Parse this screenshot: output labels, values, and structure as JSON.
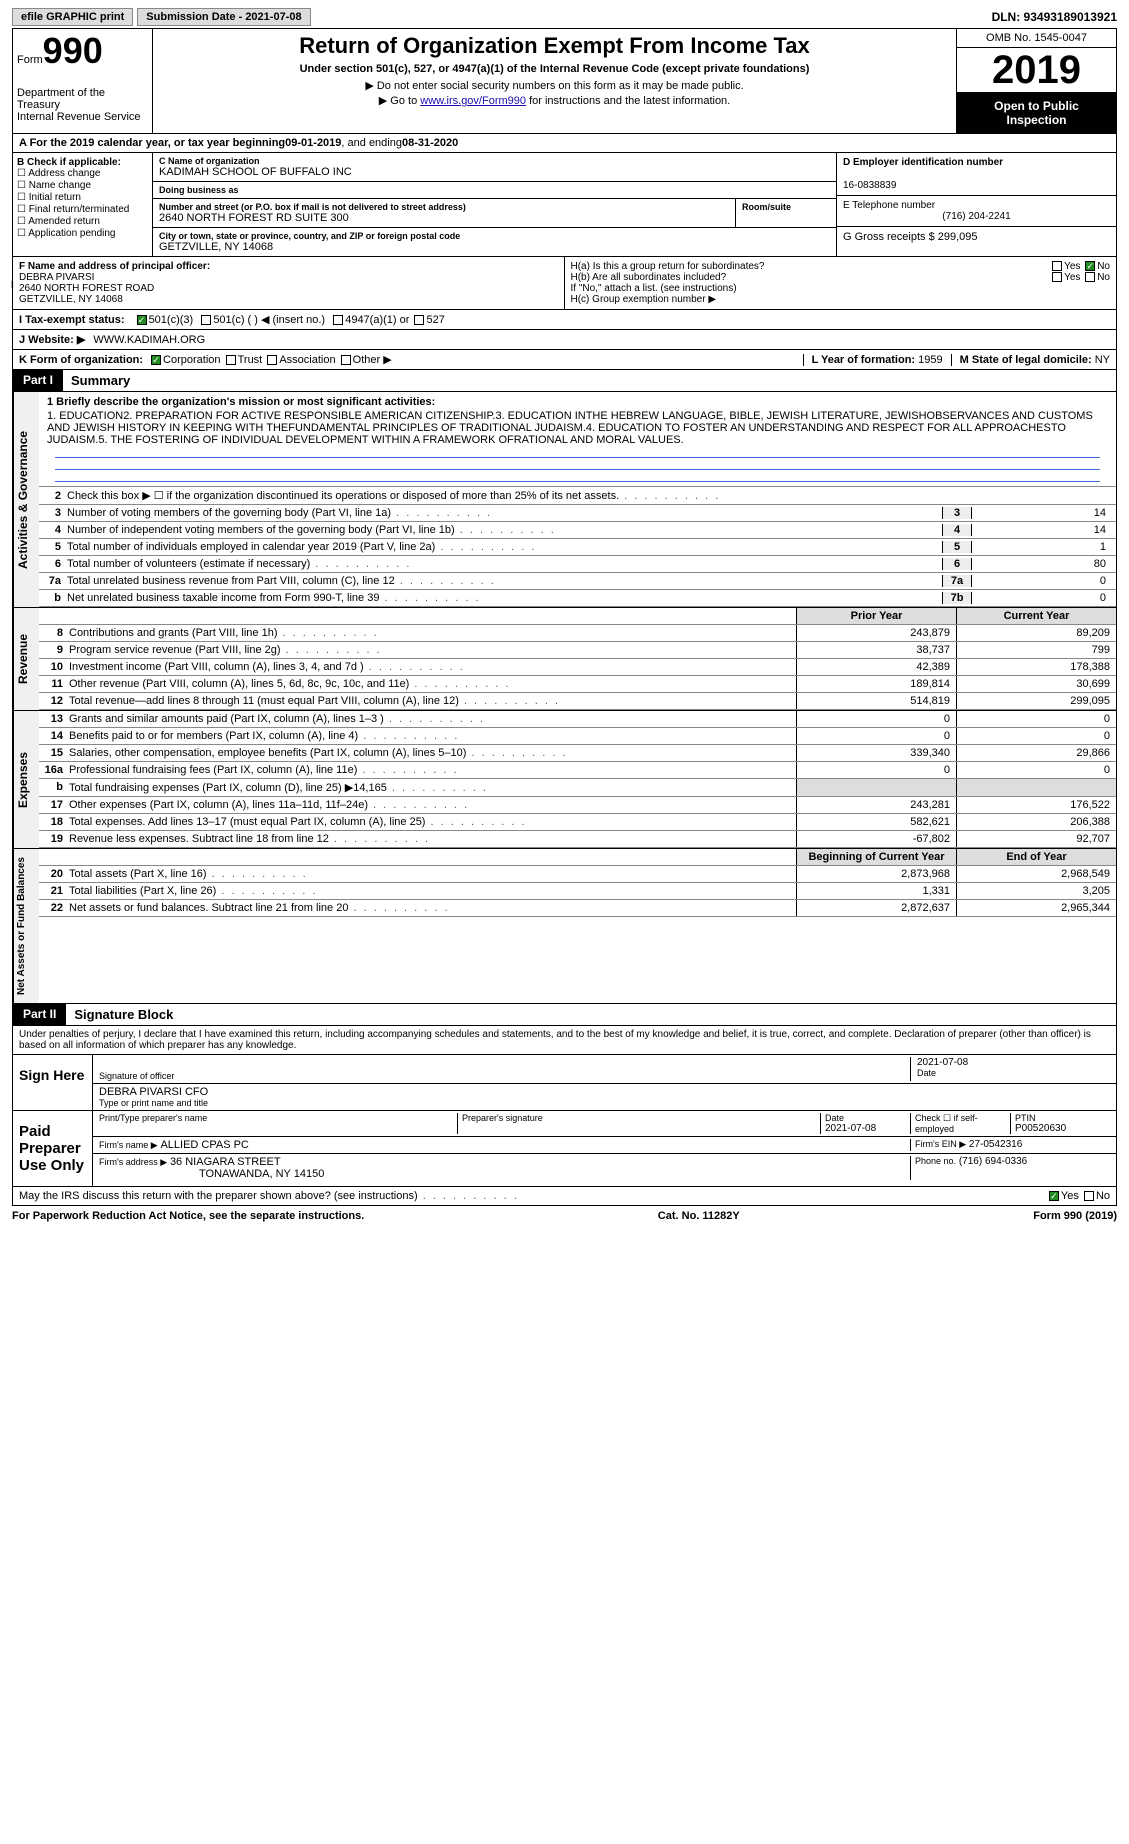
{
  "topbar": {
    "efile": "efile GRAPHIC print",
    "sub_date_label": "Submission Date - 2021-07-08",
    "dln": "DLN: 93493189013921"
  },
  "header": {
    "form_label": "Form",
    "form_num": "990",
    "dept": "Department of the Treasury\nInternal Revenue Service",
    "title": "Return of Organization Exempt From Income Tax",
    "subtitle": "Under section 501(c), 527, or 4947(a)(1) of the Internal Revenue Code (except private foundations)",
    "note1": "▶ Do not enter social security numbers on this form as it may be made public.",
    "note2_pre": "▶ Go to ",
    "note2_link": "www.irs.gov/Form990",
    "note2_post": " for instructions and the latest information.",
    "omb": "OMB No. 1545-0047",
    "year": "2019",
    "inspect": "Open to Public Inspection"
  },
  "period": {
    "label_a": "A For the 2019 calendar year, or tax year beginning ",
    "begin": "09-01-2019",
    "mid": " , and ending ",
    "end": "08-31-2020"
  },
  "box_b": {
    "hdr": "B Check if applicable:",
    "opts": [
      "Address change",
      "Name change",
      "Initial return",
      "Final return/terminated",
      "Amended return",
      "Application pending"
    ]
  },
  "box_c": {
    "name_lbl": "C Name of organization",
    "name": "KADIMAH SCHOOL OF BUFFALO INC",
    "dba_lbl": "Doing business as",
    "dba": "",
    "addr_lbl": "Number and street (or P.O. box if mail is not delivered to street address)",
    "room_lbl": "Room/suite",
    "addr": "2640 NORTH FOREST RD SUITE 300",
    "city_lbl": "City or town, state or province, country, and ZIP or foreign postal code",
    "city": "GETZVILLE, NY  14068"
  },
  "box_d": {
    "lbl": "D Employer identification number",
    "val": "16-0838839"
  },
  "box_e": {
    "lbl": "E Telephone number",
    "val": "(716) 204-2241"
  },
  "box_g": {
    "lbl": "G Gross receipts $ ",
    "val": "299,095"
  },
  "box_f": {
    "lbl": "F  Name and address of principal officer:",
    "name": "DEBRA PIVARSI",
    "addr1": "2640 NORTH FOREST ROAD",
    "addr2": "GETZVILLE, NY  14068"
  },
  "box_h": {
    "a": "H(a)  Is this a group return for subordinates?",
    "b": "H(b)  Are all subordinates included?",
    "note": "If \"No,\" attach a list. (see instructions)",
    "c": "H(c)  Group exemption number ▶"
  },
  "row_i": {
    "lbl": "I  Tax-exempt status:",
    "c1": "501(c)(3)",
    "c2": "501(c) (  ) ◀ (insert no.)",
    "c3": "4947(a)(1) or",
    "c4": "527"
  },
  "row_j": {
    "lbl": "J  Website: ▶",
    "val": "WWW.KADIMAH.ORG"
  },
  "row_k": {
    "lbl": "K Form of organization:",
    "opts": [
      "Corporation",
      "Trust",
      "Association",
      "Other ▶"
    ]
  },
  "row_l": {
    "lbl": "L Year of formation: ",
    "val": "1959"
  },
  "row_m": {
    "lbl": "M State of legal domicile: ",
    "val": "NY"
  },
  "part1": {
    "num": "Part I",
    "title": "Summary"
  },
  "mission": {
    "line1": "1  Briefly describe the organization's mission or most significant activities:",
    "text": "1. EDUCATION2. PREPARATION FOR ACTIVE RESPONSIBLE AMERICAN CITIZENSHIP.3. EDUCATION INTHE HEBREW LANGUAGE, BIBLE, JEWISH LITERATURE, JEWISHOBSERVANCES AND CUSTOMS AND JEWISH HISTORY IN KEEPING WITH THEFUNDAMENTAL PRINCIPLES OF TRADITIONAL JUDAISM.4. EDUCATION TO FOSTER AN UNDERSTANDING AND RESPECT FOR ALL APPROACHESTO JUDAISM.5. THE FOSTERING OF INDIVIDUAL DEVELOPMENT WITHIN A FRAMEWORK OFRATIONAL AND MORAL VALUES."
  },
  "gov_lines": [
    {
      "n": "2",
      "t": "Check this box ▶ ☐ if the organization discontinued its operations or disposed of more than 25% of its net assets."
    },
    {
      "n": "3",
      "t": "Number of voting members of the governing body (Part VI, line 1a)",
      "box": "3",
      "v": "14"
    },
    {
      "n": "4",
      "t": "Number of independent voting members of the governing body (Part VI, line 1b)",
      "box": "4",
      "v": "14"
    },
    {
      "n": "5",
      "t": "Total number of individuals employed in calendar year 2019 (Part V, line 2a)",
      "box": "5",
      "v": "1"
    },
    {
      "n": "6",
      "t": "Total number of volunteers (estimate if necessary)",
      "box": "6",
      "v": "80"
    },
    {
      "n": "7a",
      "t": "Total unrelated business revenue from Part VIII, column (C), line 12",
      "box": "7a",
      "v": "0"
    },
    {
      "n": "b",
      "t": "Net unrelated business taxable income from Form 990-T, line 39",
      "box": "7b",
      "v": "0"
    }
  ],
  "col_hdr": {
    "prior": "Prior Year",
    "current": "Current Year"
  },
  "revenue": [
    {
      "n": "8",
      "t": "Contributions and grants (Part VIII, line 1h)",
      "c1": "243,879",
      "c2": "89,209"
    },
    {
      "n": "9",
      "t": "Program service revenue (Part VIII, line 2g)",
      "c1": "38,737",
      "c2": "799"
    },
    {
      "n": "10",
      "t": "Investment income (Part VIII, column (A), lines 3, 4, and 7d )",
      "c1": "42,389",
      "c2": "178,388"
    },
    {
      "n": "11",
      "t": "Other revenue (Part VIII, column (A), lines 5, 6d, 8c, 9c, 10c, and 11e)",
      "c1": "189,814",
      "c2": "30,699"
    },
    {
      "n": "12",
      "t": "Total revenue—add lines 8 through 11 (must equal Part VIII, column (A), line 12)",
      "c1": "514,819",
      "c2": "299,095"
    }
  ],
  "expenses": [
    {
      "n": "13",
      "t": "Grants and similar amounts paid (Part IX, column (A), lines 1–3 )",
      "c1": "0",
      "c2": "0"
    },
    {
      "n": "14",
      "t": "Benefits paid to or for members (Part IX, column (A), line 4)",
      "c1": "0",
      "c2": "0"
    },
    {
      "n": "15",
      "t": "Salaries, other compensation, employee benefits (Part IX, column (A), lines 5–10)",
      "c1": "339,340",
      "c2": "29,866"
    },
    {
      "n": "16a",
      "t": "Professional fundraising fees (Part IX, column (A), line 11e)",
      "c1": "0",
      "c2": "0"
    },
    {
      "n": "b",
      "t": "Total fundraising expenses (Part IX, column (D), line 25) ▶14,165",
      "c1": "",
      "c2": ""
    },
    {
      "n": "17",
      "t": "Other expenses (Part IX, column (A), lines 11a–11d, 11f–24e)",
      "c1": "243,281",
      "c2": "176,522"
    },
    {
      "n": "18",
      "t": "Total expenses. Add lines 13–17 (must equal Part IX, column (A), line 25)",
      "c1": "582,621",
      "c2": "206,388"
    },
    {
      "n": "19",
      "t": "Revenue less expenses. Subtract line 18 from line 12",
      "c1": "-67,802",
      "c2": "92,707"
    }
  ],
  "col_hdr2": {
    "prior": "Beginning of Current Year",
    "current": "End of Year"
  },
  "netassets": [
    {
      "n": "20",
      "t": "Total assets (Part X, line 16)",
      "c1": "2,873,968",
      "c2": "2,968,549"
    },
    {
      "n": "21",
      "t": "Total liabilities (Part X, line 26)",
      "c1": "1,331",
      "c2": "3,205"
    },
    {
      "n": "22",
      "t": "Net assets or fund balances. Subtract line 21 from line 20",
      "c1": "2,872,637",
      "c2": "2,965,344"
    }
  ],
  "tabs": {
    "gov": "Activities & Governance",
    "rev": "Revenue",
    "exp": "Expenses",
    "net": "Net Assets or Fund Balances"
  },
  "part2": {
    "num": "Part II",
    "title": "Signature Block"
  },
  "sig_intro": "Under penalties of perjury, I declare that I have examined this return, including accompanying schedules and statements, and to the best of my knowledge and belief, it is true, correct, and complete. Declaration of preparer (other than officer) is based on all information of which preparer has any knowledge.",
  "sign_here": "Sign Here",
  "sig_officer": {
    "lbl": "Signature of officer",
    "date": "2021-07-08",
    "name": "DEBRA PIVARSI CFO",
    "name_lbl": "Type or print name and title"
  },
  "paid_prep": "Paid Preparer Use Only",
  "prep": {
    "name_lbl": "Print/Type preparer's name",
    "sig_lbl": "Preparer's signature",
    "date_lbl": "Date",
    "date": "2021-07-08",
    "check_lbl": "Check ☐ if self-employed",
    "ptin_lbl": "PTIN",
    "ptin": "P00520630",
    "firm_lbl": "Firm's name  ▶",
    "firm": "ALLIED CPAS PC",
    "ein_lbl": "Firm's EIN ▶",
    "ein": "27-0542316",
    "addr_lbl": "Firm's address ▶",
    "addr": "36 NIAGARA STREET",
    "addr2": "TONAWANDA, NY  14150",
    "phone_lbl": "Phone no.",
    "phone": "(716) 694-0336"
  },
  "discuss": "May the IRS discuss this return with the preparer shown above? (see instructions)",
  "footer": {
    "left": "For Paperwork Reduction Act Notice, see the separate instructions.",
    "mid": "Cat. No. 11282Y",
    "right": "Form 990 (2019)"
  }
}
